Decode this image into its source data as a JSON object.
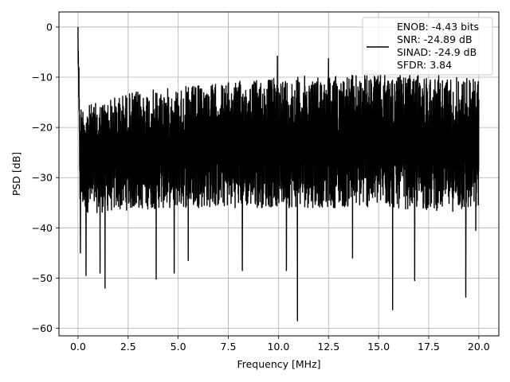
{
  "chart_data": {
    "type": "line",
    "title": "",
    "xlabel": "Frequency [MHz]",
    "ylabel": "PSD [dB]",
    "xlim": [
      -0.95,
      21.0
    ],
    "ylim": [
      -61.5,
      3.0
    ],
    "xticks": [
      0.0,
      2.5,
      5.0,
      7.5,
      10.0,
      12.5,
      15.0,
      17.5,
      20.0
    ],
    "xtick_labels": [
      "0.0",
      "2.5",
      "5.0",
      "7.5",
      "10.0",
      "12.5",
      "15.0",
      "17.5",
      "20.0"
    ],
    "yticks": [
      0,
      -10,
      -20,
      -30,
      -40,
      -50,
      -60
    ],
    "ytick_labels": [
      "0",
      "−10",
      "−20",
      "−30",
      "−40",
      "−50",
      "−60"
    ],
    "grid": true,
    "legend_position": "top-right",
    "line_color": "#000000",
    "series": [
      {
        "legend_lines": [
          "ENOB: -4.43 bits",
          "SNR: -24.89 dB",
          "SINAD: -24.9 dB",
          "SFDR: 3.84"
        ],
        "peak": {
          "x": 0.0,
          "y": 0.0
        },
        "envelope": {
          "x": [
            0.0,
            0.1,
            0.5,
            1.0,
            2.5,
            5.0,
            7.5,
            10.0,
            12.5,
            15.0,
            17.5,
            20.0
          ],
          "upper": [
            0.0,
            -15.5,
            -15.5,
            -15.0,
            -13.0,
            -12.0,
            -11.0,
            -10.0,
            -9.5,
            -9.5,
            -9.5,
            -10.0
          ],
          "lower": [
            -6.0,
            -36.0,
            -37.0,
            -37.0,
            -36.5,
            -36.0,
            -36.0,
            -36.0,
            -36.0,
            -36.0,
            -36.5,
            -37.0
          ]
        },
        "notable_points": [
          {
            "x": 0.12,
            "y": -45.0
          },
          {
            "x": 0.4,
            "y": -49.5
          },
          {
            "x": 1.1,
            "y": -49.0
          },
          {
            "x": 1.35,
            "y": -52.0
          },
          {
            "x": 3.9,
            "y": -50.2
          },
          {
            "x": 4.8,
            "y": -49.0
          },
          {
            "x": 5.5,
            "y": -46.5
          },
          {
            "x": 8.2,
            "y": -48.5
          },
          {
            "x": 9.95,
            "y": -5.8
          },
          {
            "x": 10.4,
            "y": -48.5
          },
          {
            "x": 10.95,
            "y": -58.5
          },
          {
            "x": 12.5,
            "y": -6.3
          },
          {
            "x": 13.7,
            "y": -46.0
          },
          {
            "x": 15.7,
            "y": -56.3
          },
          {
            "x": 16.8,
            "y": -50.5
          },
          {
            "x": 19.35,
            "y": -53.8
          },
          {
            "x": 19.85,
            "y": -40.5
          }
        ]
      }
    ]
  }
}
